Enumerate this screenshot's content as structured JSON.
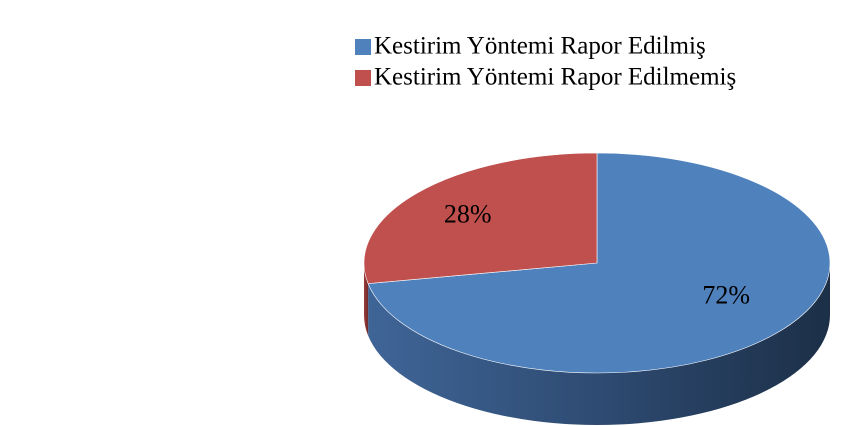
{
  "chart_data": {
    "type": "pie",
    "labels": [
      "Kestirim Yöntemi Rapor Edilmiş",
      "Kestirim Yöntemi Rapor Edilmemiş"
    ],
    "values": [
      72,
      28
    ],
    "value_labels": [
      "72%",
      "28%"
    ],
    "colors": [
      "#4f81bd",
      "#c0504d"
    ],
    "legend": "top-right"
  }
}
